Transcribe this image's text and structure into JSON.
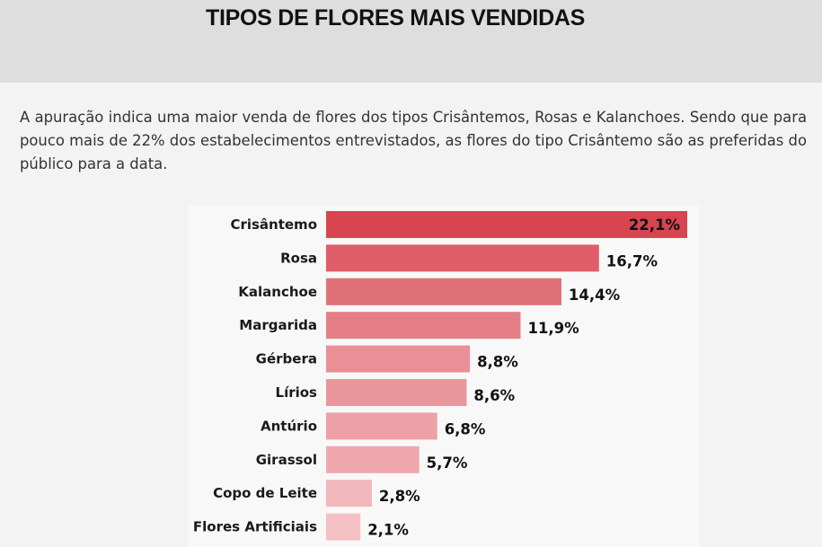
{
  "header": {
    "title": "TIPOS DE FLORES MAIS VENDIDAS"
  },
  "intro": {
    "text": "A apuração indica uma maior venda de flores dos tipos Crisântemos, Rosas e Kalanchoes. Sendo que para pouco mais de 22% dos estabelecimentos entrevistados, as flores do tipo Crisântemo são as preferidas do público para a data."
  },
  "chart_data": {
    "type": "bar",
    "orientation": "horizontal",
    "categories": [
      "Crisântemo",
      "Rosa",
      "Kalanchoe",
      "Margarida",
      "Gérbera",
      "Lírios",
      "Antúrio",
      "Girassol",
      "Copo de Leite",
      "Flores Artificiais"
    ],
    "values": [
      22.1,
      16.7,
      14.4,
      11.9,
      8.8,
      8.6,
      6.8,
      5.7,
      2.8,
      2.1
    ],
    "value_labels": [
      "22,1%",
      "16,7%",
      "14,4%",
      "11,9%",
      "8,8%",
      "8,6%",
      "6,8%",
      "5,7%",
      "2,8%",
      "2,1%"
    ],
    "colors": [
      "#d94451",
      "#df5e69",
      "#e07078",
      "#e57f87",
      "#ea8f96",
      "#ea959c",
      "#eda1a7",
      "#efa9ae",
      "#f2b7bb",
      "#f4c0c4"
    ],
    "xlim": [
      0,
      22.1
    ],
    "grid": false,
    "legend": "none"
  }
}
